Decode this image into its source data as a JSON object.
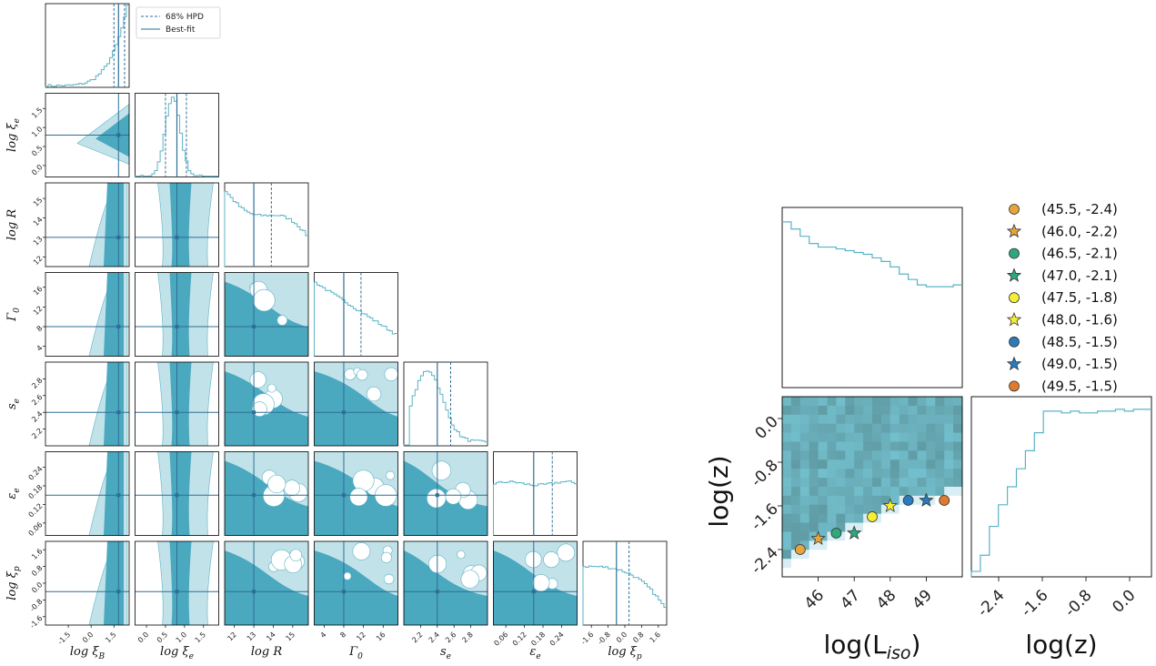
{
  "chart_data": [
    {
      "type": "corner",
      "params": [
        {
          "key": "xiB",
          "label": "log ξ_B",
          "ticks": [
            "-1.5",
            "0.0",
            "1.5"
          ],
          "range": [
            -3,
            2.5
          ],
          "best": 1.8,
          "hpd": [
            1.5,
            2.2
          ]
        },
        {
          "key": "xie",
          "label": "log ξ_e",
          "ticks": [
            "0.0",
            "0.5",
            "1.0",
            "1.5"
          ],
          "range": [
            -0.3,
            1.9
          ],
          "best": 0.8,
          "hpd": [
            0.5,
            1.05
          ]
        },
        {
          "key": "R",
          "label": "log R",
          "ticks": [
            "12",
            "13",
            "14",
            "15"
          ],
          "range": [
            11.5,
            15.8
          ],
          "best": 13.0,
          "hpd": [
            13.0,
            13.9
          ]
        },
        {
          "key": "G0",
          "label": "Γ_0",
          "ticks": [
            "4",
            "8",
            "12",
            "16"
          ],
          "range": [
            2,
            19
          ],
          "best": 8.0,
          "hpd": [
            8.0,
            11.5
          ]
        },
        {
          "key": "se",
          "label": "s_e",
          "ticks": [
            "2.2",
            "2.4",
            "2.6",
            "2.8"
          ],
          "range": [
            2.0,
            3.0
          ],
          "best": 2.4,
          "hpd": [
            2.4,
            2.56
          ]
        },
        {
          "key": "ee",
          "label": "ε_e",
          "ticks": [
            "0.06",
            "0.12",
            "0.18",
            "0.24"
          ],
          "range": [
            0.02,
            0.29
          ],
          "best": 0.15,
          "hpd": [
            0.15,
            0.21
          ]
        },
        {
          "key": "xip",
          "label": "log ξ_p",
          "ticks": [
            "-1.6",
            "-0.8",
            "0.0",
            "0.8",
            "1.6"
          ],
          "range": [
            -2.0,
            2.0
          ],
          "best": -0.4,
          "hpd": [
            -0.4,
            0.2
          ]
        }
      ],
      "ylabels": [
        "log ξ_e",
        "log R",
        "Γ_0",
        "s_e",
        "ε_e",
        "log ξ_p"
      ],
      "yticks": [
        [
          "0.0",
          "0.5",
          "1.0",
          "1.5"
        ],
        [
          "12",
          "13",
          "14",
          "15"
        ],
        [
          "4",
          "8",
          "12",
          "16"
        ],
        [
          "2.2",
          "2.4",
          "2.6",
          "2.8"
        ],
        [
          "0.06",
          "0.12",
          "0.18",
          "0.24"
        ],
        [
          "-1.6",
          "-0.8",
          "0.0",
          "0.8",
          "1.6"
        ]
      ],
      "legend": [
        "68% HPD",
        "Best-fit"
      ]
    },
    {
      "type": "heatmap_corner",
      "xlabel": "log(L_iso)",
      "ylabel": "log(z)",
      "xlabel_bottom_right": "log(z)",
      "xticks": [
        "46",
        "47",
        "48",
        "49"
      ],
      "yticks": [
        "0.0",
        "-0.8",
        "-1.6",
        "-2.4"
      ],
      "hist_xticks": [
        "-2.4",
        "-1.6",
        "-0.8",
        "0.0"
      ],
      "xlim": [
        45.0,
        50.0
      ],
      "ylim": [
        -2.9,
        0.4
      ],
      "points": [
        {
          "x": 45.5,
          "y": -2.4,
          "marker": "circle",
          "color": "#e8a43a",
          "label": "(45.5, -2.4)"
        },
        {
          "x": 46.0,
          "y": -2.2,
          "marker": "star",
          "color": "#e8a43a",
          "label": "(46.0, -2.2)"
        },
        {
          "x": 46.5,
          "y": -2.1,
          "marker": "circle",
          "color": "#2fa87c",
          "label": "(46.5, -2.1)"
        },
        {
          "x": 47.0,
          "y": -2.1,
          "marker": "star",
          "color": "#2fa87c",
          "label": "(47.0, -2.1)"
        },
        {
          "x": 47.5,
          "y": -1.8,
          "marker": "circle",
          "color": "#f4ef35",
          "label": "(47.5, -1.8)"
        },
        {
          "x": 48.0,
          "y": -1.6,
          "marker": "star",
          "color": "#f4ef35",
          "label": "(48.0, -1.6)"
        },
        {
          "x": 48.5,
          "y": -1.5,
          "marker": "circle",
          "color": "#2b7bba",
          "label": "(48.5, -1.5)"
        },
        {
          "x": 49.0,
          "y": -1.5,
          "marker": "star",
          "color": "#2b7bba",
          "label": "(49.0, -1.5)"
        },
        {
          "x": 49.5,
          "y": -1.5,
          "marker": "circle",
          "color": "#e07a30",
          "label": "(49.5, -1.5)"
        }
      ]
    }
  ],
  "colors": {
    "dark": "#4aa8bf",
    "light": "#c2e2ea",
    "line": "#2e6e96",
    "hist": "#5ab3c6"
  }
}
